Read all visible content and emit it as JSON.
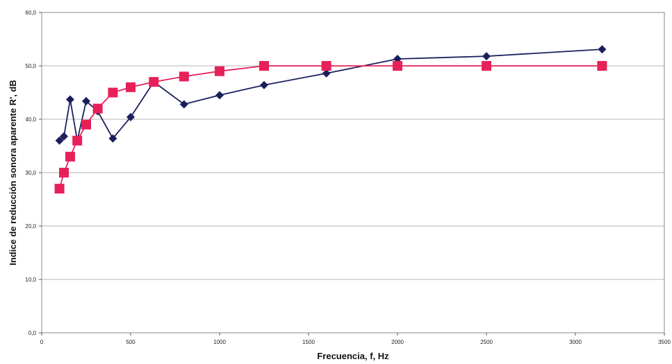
{
  "chart_data": {
    "type": "line",
    "title": "",
    "xlabel": "Frecuencia, f, Hz",
    "ylabel": "Indice de reducción sonora aparente R', dB",
    "xlim": [
      0,
      3500
    ],
    "ylim": [
      0,
      60
    ],
    "x_ticks": [
      "0",
      "500",
      "1000",
      "1500",
      "2000",
      "2500",
      "3000",
      "3500"
    ],
    "y_ticks": [
      "0,0",
      "10,0",
      "20,0",
      "30,0",
      "40,0",
      "50,0",
      "60,0"
    ],
    "grid": "horizontal",
    "legend": "none",
    "series": [
      {
        "color": "#1a1f5c",
        "marker": "diamond",
        "points": [
          [
            100,
            36.0
          ],
          [
            125,
            36.8
          ],
          [
            160,
            43.7
          ],
          [
            200,
            36.0
          ],
          [
            250,
            43.4
          ],
          [
            315,
            41.5
          ],
          [
            400,
            36.4
          ],
          [
            500,
            40.4
          ],
          [
            630,
            47.0
          ],
          [
            800,
            42.8
          ],
          [
            1000,
            44.5
          ],
          [
            1250,
            46.4
          ],
          [
            1600,
            48.6
          ],
          [
            2000,
            51.3
          ],
          [
            2500,
            51.8
          ],
          [
            3150,
            53.1
          ]
        ]
      },
      {
        "color": "#e8205a",
        "marker": "square",
        "points": [
          [
            100,
            27.0
          ],
          [
            125,
            30.0
          ],
          [
            160,
            33.0
          ],
          [
            200,
            36.0
          ],
          [
            250,
            39.0
          ],
          [
            315,
            42.0
          ],
          [
            400,
            45.0
          ],
          [
            500,
            46.0
          ],
          [
            630,
            47.0
          ],
          [
            800,
            48.0
          ],
          [
            1000,
            49.0
          ],
          [
            1250,
            50.0
          ],
          [
            1600,
            50.0
          ],
          [
            2000,
            50.0
          ],
          [
            2500,
            50.0
          ],
          [
            3150,
            50.0
          ]
        ]
      }
    ]
  }
}
